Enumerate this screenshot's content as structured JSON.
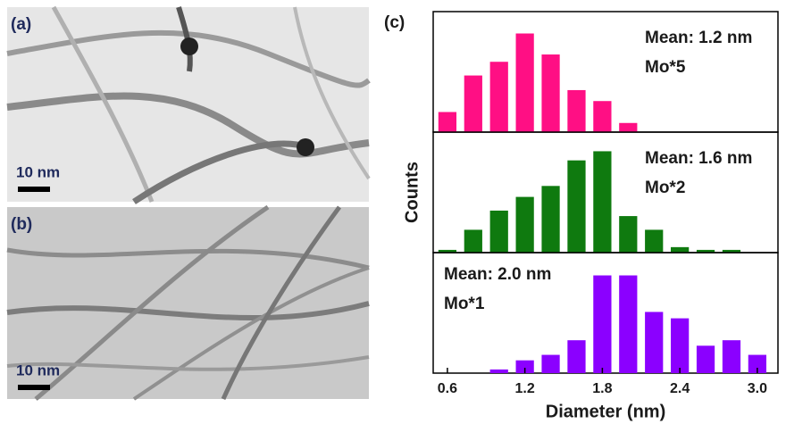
{
  "images": [
    {
      "label": "(a)",
      "scale_bar": "10 nm"
    },
    {
      "label": "(b)",
      "scale_bar": "10 nm"
    }
  ],
  "panel_label": "(c)",
  "chart_data": [
    {
      "type": "bar",
      "color": "#ff0f84",
      "annotations": [
        "Mean: 1.2 nm",
        "Mo*5"
      ],
      "ylabel": "Counts",
      "x": [
        0.6,
        0.8,
        1.0,
        1.2,
        1.4,
        1.6,
        1.8,
        2.0
      ],
      "values": [
        22,
        62,
        77,
        108,
        85,
        46,
        34,
        10
      ],
      "xlim": [
        0.49,
        3.16
      ],
      "ylim": [
        0,
        130
      ]
    },
    {
      "type": "bar",
      "color": "#0f7a0f",
      "annotations": [
        "Mean: 1.6 nm",
        "Mo*2"
      ],
      "x": [
        0.6,
        0.8,
        1.0,
        1.2,
        1.4,
        1.6,
        1.8,
        2.0,
        2.2,
        2.4,
        2.6,
        2.8
      ],
      "values": [
        3,
        25,
        46,
        61,
        73,
        101,
        111,
        40,
        25,
        6,
        3,
        3
      ],
      "xlim": [
        0.49,
        3.16
      ],
      "ylim": [
        0,
        130
      ]
    },
    {
      "type": "bar",
      "color": "#8b00ff",
      "annotations": [
        "Mean: 2.0 nm",
        "Mo*1"
      ],
      "x": [
        1.0,
        1.2,
        1.4,
        1.6,
        1.8,
        2.0,
        2.2,
        2.4,
        2.6,
        2.8,
        3.0
      ],
      "values": [
        4,
        14,
        20,
        36,
        107,
        107,
        67,
        60,
        30,
        36,
        20
      ],
      "xlim": [
        0.49,
        3.16
      ],
      "ylim": [
        0,
        130
      ],
      "xlabel": "Diameter (nm)",
      "xticks": [
        0.6,
        1.2,
        1.8,
        2.4,
        {
          "value": 3,
          "label": "3.0"
        }
      ]
    }
  ]
}
